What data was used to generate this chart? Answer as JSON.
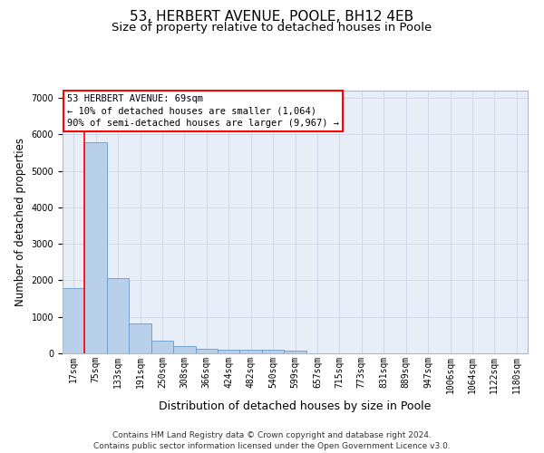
{
  "title": "53, HERBERT AVENUE, POOLE, BH12 4EB",
  "subtitle": "Size of property relative to detached houses in Poole",
  "xlabel": "Distribution of detached houses by size in Poole",
  "ylabel": "Number of detached properties",
  "bin_labels": [
    "17sqm",
    "75sqm",
    "133sqm",
    "191sqm",
    "250sqm",
    "308sqm",
    "366sqm",
    "424sqm",
    "482sqm",
    "540sqm",
    "599sqm",
    "657sqm",
    "715sqm",
    "773sqm",
    "831sqm",
    "889sqm",
    "947sqm",
    "1006sqm",
    "1064sqm",
    "1122sqm",
    "1180sqm"
  ],
  "bar_heights": [
    1780,
    5780,
    2060,
    820,
    340,
    190,
    120,
    110,
    100,
    95,
    80,
    0,
    0,
    0,
    0,
    0,
    0,
    0,
    0,
    0,
    0
  ],
  "bar_color": "#b8d0ea",
  "bar_edge_color": "#6699cc",
  "grid_color": "#d0d8e8",
  "background_color": "#e8eef8",
  "annotation_text": "53 HERBERT AVENUE: 69sqm\n← 10% of detached houses are smaller (1,064)\n90% of semi-detached houses are larger (9,967) →",
  "footer_line1": "Contains HM Land Registry data © Crown copyright and database right 2024.",
  "footer_line2": "Contains public sector information licensed under the Open Government Licence v3.0.",
  "ylim": [
    0,
    7200
  ],
  "yticks": [
    0,
    1000,
    2000,
    3000,
    4000,
    5000,
    6000,
    7000
  ],
  "red_line_x": 0.5,
  "title_fontsize": 11,
  "subtitle_fontsize": 9.5,
  "ylabel_fontsize": 8.5,
  "xlabel_fontsize": 9,
  "tick_fontsize": 7,
  "annotation_fontsize": 7.5,
  "footer_fontsize": 6.5
}
